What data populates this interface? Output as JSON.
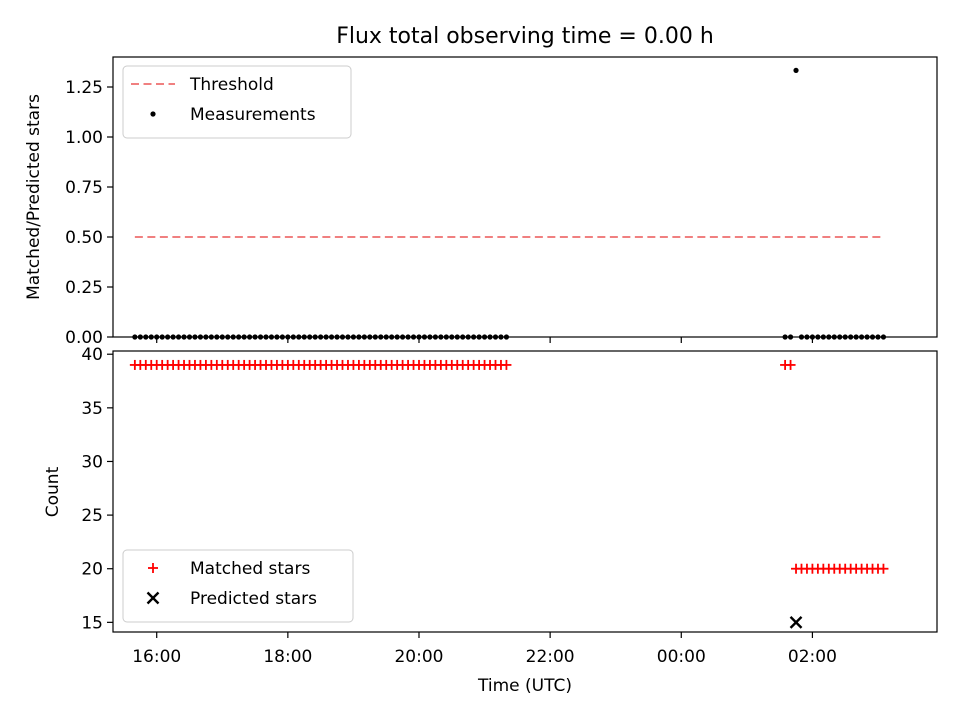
{
  "title": "Flux total observing time = 0.00 h",
  "x_axis": {
    "label": "Time (UTC)",
    "tick_values": [
      "16:00",
      "18:00",
      "20:00",
      "22:00",
      "00:00",
      "02:00"
    ],
    "range": [
      "15:20",
      "03:54"
    ]
  },
  "chart_data": [
    {
      "type": "scatter",
      "panel": "top",
      "ylabel": "Matched/Predicted stars",
      "ylim": [
        0,
        1.4
      ],
      "yticks": [
        "0.00",
        "0.25",
        "0.50",
        "0.75",
        "1.00",
        "1.25"
      ],
      "grid": false,
      "legend_position": "upper-left",
      "series": [
        {
          "name": "Threshold",
          "kind": "dashed-line",
          "color": "#f08080",
          "points": [
            [
              "15:40",
              0.5
            ],
            [
              "03:05",
              0.5
            ]
          ]
        },
        {
          "name": "Measurements",
          "kind": "dot",
          "color": "#000000",
          "segments": [
            {
              "start": "15:40",
              "end": "21:20",
              "step_minutes": 5,
              "value": 0.0
            },
            {
              "start": "01:35",
              "end": "01:40",
              "step_minutes": 5,
              "value": 0.0
            },
            {
              "start": "01:50",
              "end": "03:05",
              "step_minutes": 5,
              "value": 0.0
            }
          ],
          "extra_points": [
            [
              "01:45",
              1.333
            ]
          ]
        }
      ]
    },
    {
      "type": "scatter",
      "panel": "bottom",
      "ylabel": "Count",
      "ylim": [
        14.1,
        40.3
      ],
      "yticks": [
        "15",
        "20",
        "25",
        "30",
        "35",
        "40"
      ],
      "grid": false,
      "legend_position": "lower-left",
      "series": [
        {
          "name": "Matched stars",
          "marker": "plus",
          "color": "#ff0000",
          "segments": [
            {
              "start": "15:40",
              "end": "21:20",
              "step_minutes": 5,
              "value": 39
            },
            {
              "start": "01:35",
              "end": "01:40",
              "step_minutes": 5,
              "value": 39
            },
            {
              "start": "01:45",
              "end": "03:05",
              "step_minutes": 5,
              "value": 20
            }
          ]
        },
        {
          "name": "Predicted stars",
          "marker": "x",
          "color": "#000000",
          "points": [
            [
              "01:45",
              15
            ]
          ]
        }
      ]
    }
  ]
}
